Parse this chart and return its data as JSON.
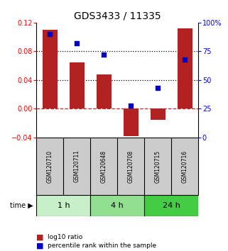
{
  "title": "GDS3433 / 11335",
  "categories": [
    "GSM120710",
    "GSM120711",
    "GSM120648",
    "GSM120708",
    "GSM120715",
    "GSM120716"
  ],
  "bar_values": [
    0.11,
    0.065,
    0.048,
    -0.038,
    -0.015,
    0.112
  ],
  "percentile_values": [
    90,
    82,
    72,
    28,
    43,
    68
  ],
  "bar_color": "#b22222",
  "dot_color": "#0000cc",
  "ylim_left": [
    -0.04,
    0.12
  ],
  "ylim_right": [
    0,
    100
  ],
  "yticks_left": [
    -0.04,
    0,
    0.04,
    0.08,
    0.12
  ],
  "yticks_right": [
    0,
    25,
    50,
    75,
    100
  ],
  "ytick_labels_right": [
    "0",
    "25",
    "50",
    "75",
    "100%"
  ],
  "hlines": [
    0.08,
    0.04
  ],
  "zero_line_color": "#cc2222",
  "hline_color": "#000000",
  "time_groups": [
    {
      "label": "1 h",
      "start": 0,
      "end": 2,
      "color": "#c8f0c8"
    },
    {
      "label": "4 h",
      "start": 2,
      "end": 4,
      "color": "#90e090"
    },
    {
      "label": "24 h",
      "start": 4,
      "end": 6,
      "color": "#44cc44"
    }
  ],
  "legend_items": [
    {
      "label": "log10 ratio",
      "color": "#b22222"
    },
    {
      "label": "percentile rank within the sample",
      "color": "#0000cc"
    }
  ],
  "bar_width": 0.55,
  "background_color": "#ffffff",
  "gsm_bg_color": "#cccccc",
  "title_fontsize": 10
}
